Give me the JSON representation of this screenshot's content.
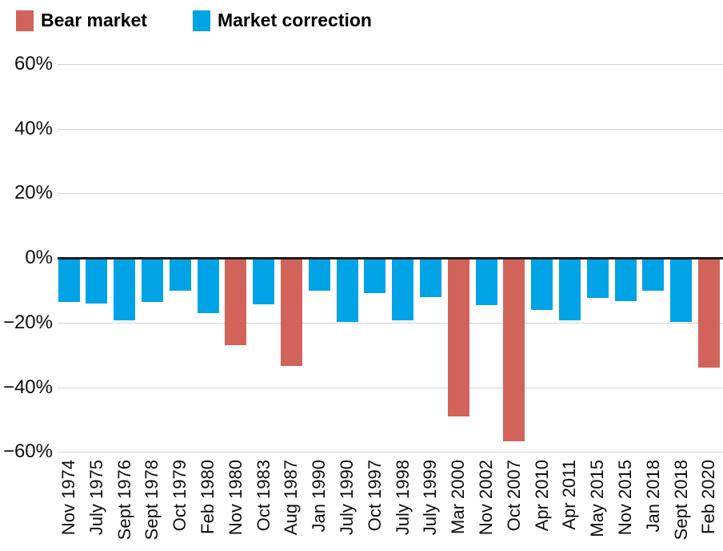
{
  "legend": {
    "items": [
      {
        "key": "bear",
        "label": "Bear market"
      },
      {
        "key": "correction",
        "label": "Market correction"
      }
    ]
  },
  "chart_data": {
    "type": "bar",
    "title": "",
    "xlabel": "",
    "ylabel": "",
    "categories": [
      "Nov 1974",
      "July 1975",
      "Sept 1976",
      "Sept 1978",
      "Oct 1979",
      "Feb 1980",
      "Nov 1980",
      "Oct 1983",
      "Aug 1987",
      "Jan 1990",
      "July 1990",
      "Oct 1997",
      "July 1998",
      "July 1999",
      "Mar 2000",
      "Nov 2002",
      "Oct 2007",
      "Apr 2010",
      "Apr 2011",
      "May 2015",
      "Nov 2015",
      "Jan 2018",
      "Sept 2018",
      "Feb 2020"
    ],
    "values": [
      -13.6,
      -14.1,
      -19.4,
      -13.6,
      -10.2,
      -17.1,
      -27.1,
      -14.4,
      -33.5,
      -10.2,
      -19.9,
      -10.8,
      -19.3,
      -12.1,
      -49.1,
      -14.7,
      -56.8,
      -16.0,
      -19.4,
      -12.4,
      -13.3,
      -10.2,
      -19.8,
      -33.9
    ],
    "types": [
      "correction",
      "correction",
      "correction",
      "correction",
      "correction",
      "correction",
      "bear",
      "correction",
      "bear",
      "correction",
      "correction",
      "correction",
      "correction",
      "correction",
      "bear",
      "correction",
      "bear",
      "correction",
      "correction",
      "correction",
      "correction",
      "correction",
      "correction",
      "bear"
    ],
    "colors": {
      "bear": "#d2635b",
      "correction": "#00a3e6"
    },
    "axis_colors": {
      "grid": "#d4d4d4",
      "zero_line": "#1a1a1a",
      "text": "#0d0d0d"
    },
    "ylim": [
      -60,
      60
    ],
    "yticks": [
      {
        "value": 60,
        "label": "60%"
      },
      {
        "value": 40,
        "label": "40%"
      },
      {
        "value": 20,
        "label": "20%"
      },
      {
        "value": 0,
        "label": "0%"
      },
      {
        "value": -20,
        "label": "−20%"
      },
      {
        "value": -40,
        "label": "−40%"
      },
      {
        "value": -60,
        "label": "−60%"
      }
    ],
    "grid": "horizontal",
    "legend_position": "top-left"
  }
}
